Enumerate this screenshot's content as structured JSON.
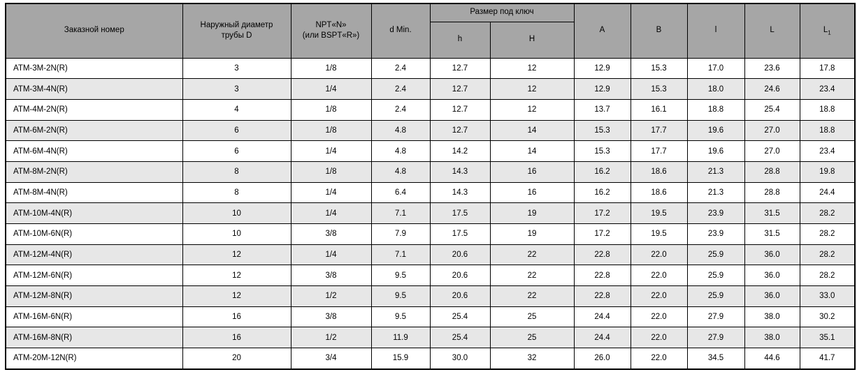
{
  "colors": {
    "header_bg": "#a6a6a6",
    "row_alt_bg": "#e7e7e7",
    "border": "#000000",
    "text": "#000000"
  },
  "table": {
    "header": {
      "order_number": "Заказной номер",
      "outer_diameter": "Наружный диаметр\nтрубы D",
      "npt": "NPT«N»\n(или BSPT«R»)",
      "d_min": "d Min.",
      "wrench_size_group": "Размер под ключ",
      "h_small": "h",
      "h_big": "H",
      "a": "A",
      "b": "B",
      "l_small": "l",
      "l_big": "L",
      "l1_base": "L",
      "l1_sub": "1"
    },
    "rows": [
      [
        "ATM-3M-2N(R)",
        "3",
        "1/8",
        "2.4",
        "12.7",
        "12",
        "12.9",
        "15.3",
        "17.0",
        "23.6",
        "17.8"
      ],
      [
        "ATM-3M-4N(R)",
        "3",
        "1/4",
        "2.4",
        "12.7",
        "12",
        "12.9",
        "15.3",
        "18.0",
        "24.6",
        "23.4"
      ],
      [
        "ATM-4M-2N(R)",
        "4",
        "1/8",
        "2.4",
        "12.7",
        "12",
        "13.7",
        "16.1",
        "18.8",
        "25.4",
        "18.8"
      ],
      [
        "ATM-6M-2N(R)",
        "6",
        "1/8",
        "4.8",
        "12.7",
        "14",
        "15.3",
        "17.7",
        "19.6",
        "27.0",
        "18.8"
      ],
      [
        "ATM-6M-4N(R)",
        "6",
        "1/4",
        "4.8",
        "14.2",
        "14",
        "15.3",
        "17.7",
        "19.6",
        "27.0",
        "23.4"
      ],
      [
        "ATM-8M-2N(R)",
        "8",
        "1/8",
        "4.8",
        "14.3",
        "16",
        "16.2",
        "18.6",
        "21.3",
        "28.8",
        "19.8"
      ],
      [
        "ATM-8M-4N(R)",
        "8",
        "1/4",
        "6.4",
        "14.3",
        "16",
        "16.2",
        "18.6",
        "21.3",
        "28.8",
        "24.4"
      ],
      [
        "ATM-10M-4N(R)",
        "10",
        "1/4",
        "7.1",
        "17.5",
        "19",
        "17.2",
        "19.5",
        "23.9",
        "31.5",
        "28.2"
      ],
      [
        "ATM-10M-6N(R)",
        "10",
        "3/8",
        "7.9",
        "17.5",
        "19",
        "17.2",
        "19.5",
        "23.9",
        "31.5",
        "28.2"
      ],
      [
        "ATM-12M-4N(R)",
        "12",
        "1/4",
        "7.1",
        "20.6",
        "22",
        "22.8",
        "22.0",
        "25.9",
        "36.0",
        "28.2"
      ],
      [
        "ATM-12M-6N(R)",
        "12",
        "3/8",
        "9.5",
        "20.6",
        "22",
        "22.8",
        "22.0",
        "25.9",
        "36.0",
        "28.2"
      ],
      [
        "ATM-12M-8N(R)",
        "12",
        "1/2",
        "9.5",
        "20.6",
        "22",
        "22.8",
        "22.0",
        "25.9",
        "36.0",
        "33.0"
      ],
      [
        "ATM-16M-6N(R)",
        "16",
        "3/8",
        "9.5",
        "25.4",
        "25",
        "24.4",
        "22.0",
        "27.9",
        "38.0",
        "30.2"
      ],
      [
        "ATM-16M-8N(R)",
        "16",
        "1/2",
        "11.9",
        "25.4",
        "25",
        "24.4",
        "22.0",
        "27.9",
        "38.0",
        "35.1"
      ],
      [
        "ATM-20M-12N(R)",
        "20",
        "3/4",
        "15.9",
        "30.0",
        "32",
        "26.0",
        "22.0",
        "34.5",
        "44.6",
        "41.7"
      ]
    ]
  }
}
